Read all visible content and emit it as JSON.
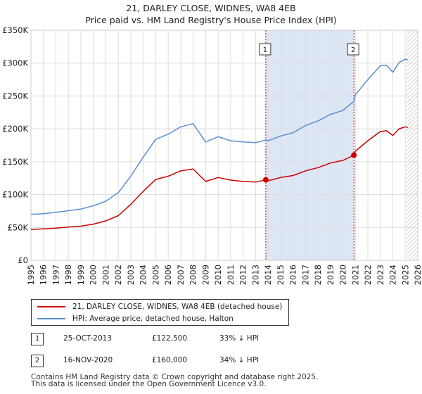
{
  "title_line1": "21, DARLEY CLOSE, WIDNES, WA8 4EB",
  "title_line2": "Price paid vs. HM Land Registry's House Price Index (HPI)",
  "colors": {
    "property": "#cc0000",
    "hpi": "#5b8fd0",
    "shade": "#dde6f5",
    "grid": "#dddddd",
    "marker": "#cc0000"
  },
  "chart_data": {
    "type": "line",
    "xlim": [
      1995,
      2026
    ],
    "ylim": [
      0,
      350000
    ],
    "y_ticks": [
      0,
      50000,
      100000,
      150000,
      200000,
      250000,
      300000,
      350000
    ],
    "y_tick_labels": [
      "£0",
      "£50K",
      "£100K",
      "£150K",
      "£200K",
      "£250K",
      "£300K",
      "£350K"
    ],
    "x_ticks": [
      "1995",
      "1996",
      "1997",
      "1998",
      "1999",
      "2000",
      "2001",
      "2002",
      "2003",
      "2004",
      "2005",
      "2006",
      "2007",
      "2008",
      "2009",
      "2010",
      "2011",
      "2012",
      "2013",
      "2014",
      "2015",
      "2016",
      "2017",
      "2018",
      "2019",
      "2020",
      "2021",
      "2022",
      "2023",
      "2024",
      "2025",
      "2026"
    ],
    "shaded_region": [
      2013.82,
      2020.88
    ],
    "forecast_start": 2025.1,
    "series": [
      {
        "name": "21, DARLEY CLOSE, WIDNES, WA8 4EB (detached house)",
        "x": [
          1995,
          1996,
          1997,
          1998,
          1999,
          2000,
          2001,
          2002,
          2003,
          2004,
          2005,
          2006,
          2007,
          2008,
          2009,
          2010,
          2011,
          2012,
          2013,
          2013.82,
          2014,
          2015,
          2016,
          2017,
          2018,
          2019,
          2020,
          2020.88,
          2021,
          2022,
          2023,
          2023.5,
          2024,
          2024.5,
          2025,
          2025.2
        ],
        "values": [
          47000,
          48000,
          49000,
          50500,
          52000,
          55000,
          60000,
          68000,
          85000,
          105000,
          123000,
          128000,
          136000,
          139000,
          120000,
          126000,
          122000,
          120000,
          119000,
          122500,
          121000,
          126000,
          129000,
          136000,
          141000,
          148000,
          152000,
          160000,
          166000,
          182000,
          196000,
          197000,
          190000,
          200000,
          203000,
          202000
        ]
      },
      {
        "name": "HPI: Average price, detached house, Halton",
        "x": [
          1995,
          1996,
          1997,
          1998,
          1999,
          2000,
          2001,
          2002,
          2003,
          2004,
          2005,
          2006,
          2007,
          2008,
          2009,
          2010,
          2011,
          2012,
          2013,
          2013.82,
          2014,
          2015,
          2016,
          2017,
          2018,
          2019,
          2020,
          2020.88,
          2021,
          2022,
          2023,
          2023.5,
          2024,
          2024.5,
          2025,
          2025.2
        ],
        "values": [
          70000,
          71000,
          73000,
          75500,
          78000,
          83000,
          90000,
          103000,
          128000,
          157000,
          184000,
          192000,
          203000,
          208000,
          180000,
          188000,
          182000,
          180000,
          179000,
          183000,
          182000,
          189000,
          194000,
          205000,
          212000,
          222000,
          228000,
          242000,
          252000,
          275000,
          296000,
          297000,
          286000,
          301000,
          306000,
          305000
        ]
      }
    ],
    "sales": [
      {
        "label": "1",
        "x": 2013.82,
        "value": 122500
      },
      {
        "label": "2",
        "x": 2020.88,
        "value": 160000
      }
    ]
  },
  "legend": {
    "property_label": "21, DARLEY CLOSE, WIDNES, WA8 4EB (detached house)",
    "hpi_label": "HPI: Average price, detached house, Halton"
  },
  "transactions": [
    {
      "num": "1",
      "date": "25-OCT-2013",
      "price": "£122,500",
      "hpi": "33% ↓ HPI"
    },
    {
      "num": "2",
      "date": "16-NOV-2020",
      "price": "£160,000",
      "hpi": "34% ↓ HPI"
    }
  ],
  "footer_line1": "Contains HM Land Registry data © Crown copyright and database right 2025.",
  "footer_line2": "This data is licensed under the Open Government Licence v3.0."
}
